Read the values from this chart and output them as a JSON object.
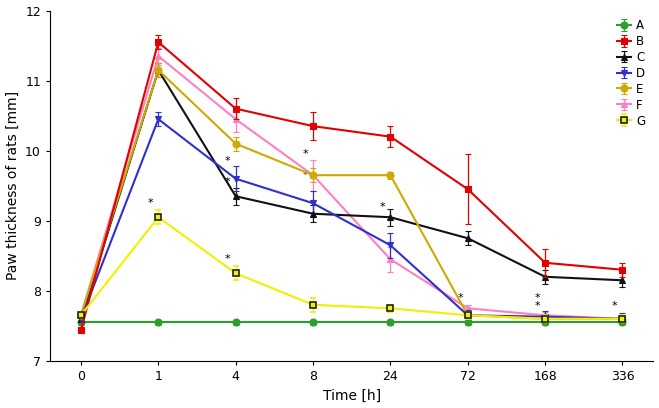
{
  "x_positions": [
    0,
    1,
    2,
    3,
    4,
    5,
    6,
    7
  ],
  "x_labels": [
    "0",
    "1",
    "4",
    "8",
    "24",
    "72",
    "168",
    "336"
  ],
  "series": {
    "A": {
      "color": "#2ca02c",
      "marker": "o",
      "markersize": 5,
      "linewidth": 1.5,
      "values": [
        7.55,
        7.55,
        7.55,
        7.55,
        7.55,
        7.55,
        7.55,
        7.55
      ],
      "errors": [
        0.04,
        0.04,
        0.04,
        0.04,
        0.04,
        0.04,
        0.04,
        0.04
      ],
      "markerfacecolor": "#2ca02c",
      "markeredgecolor": "#2ca02c",
      "zorder": 4
    },
    "B": {
      "color": "#e00000",
      "marker": "s",
      "markersize": 5,
      "linewidth": 1.5,
      "values": [
        7.44,
        11.55,
        10.6,
        10.35,
        10.2,
        9.45,
        8.4,
        8.3
      ],
      "errors": [
        0.04,
        0.1,
        0.15,
        0.2,
        0.15,
        0.5,
        0.2,
        0.1
      ],
      "markerfacecolor": "#e00000",
      "markeredgecolor": "#e00000",
      "zorder": 5
    },
    "C": {
      "color": "#111111",
      "marker": "^",
      "markersize": 5,
      "linewidth": 1.5,
      "values": [
        7.6,
        11.15,
        9.35,
        9.1,
        9.05,
        8.75,
        8.2,
        8.15
      ],
      "errors": [
        0.04,
        0.1,
        0.12,
        0.12,
        0.12,
        0.1,
        0.1,
        0.1
      ],
      "markerfacecolor": "#111111",
      "markeredgecolor": "#111111",
      "zorder": 4
    },
    "D": {
      "color": "#3030cc",
      "marker": "v",
      "markersize": 5,
      "linewidth": 1.5,
      "values": [
        7.6,
        10.45,
        9.6,
        9.25,
        8.65,
        7.65,
        7.63,
        7.6
      ],
      "errors": [
        0.04,
        0.1,
        0.18,
        0.18,
        0.18,
        0.08,
        0.08,
        0.08
      ],
      "markerfacecolor": "#3030cc",
      "markeredgecolor": "#3030cc",
      "zorder": 4
    },
    "E": {
      "color": "#ccaa00",
      "marker": "o",
      "markersize": 5,
      "linewidth": 1.5,
      "values": [
        7.65,
        11.15,
        10.1,
        9.65,
        9.65,
        7.65,
        7.6,
        7.6
      ],
      "errors": [
        0.04,
        0.1,
        0.1,
        0.1,
        0.05,
        0.05,
        0.05,
        0.05
      ],
      "markerfacecolor": "#ccaa00",
      "markeredgecolor": "#ccaa00",
      "zorder": 4
    },
    "F": {
      "color": "#ff80c0",
      "marker": "^",
      "markersize": 5,
      "linewidth": 1.5,
      "values": [
        7.65,
        11.35,
        10.45,
        9.65,
        8.45,
        7.75,
        7.65,
        7.6
      ],
      "errors": [
        0.04,
        0.12,
        0.18,
        0.22,
        0.18,
        0.05,
        0.05,
        0.05
      ],
      "markerfacecolor": "#ff80c0",
      "markeredgecolor": "#ff80c0",
      "zorder": 3
    },
    "G": {
      "color": "#f0f000",
      "marker": "s",
      "markersize": 5,
      "linewidth": 1.5,
      "values": [
        7.65,
        9.05,
        8.25,
        7.8,
        7.75,
        7.65,
        7.6,
        7.6
      ],
      "errors": [
        0.04,
        0.1,
        0.1,
        0.1,
        0.05,
        0.05,
        0.05,
        0.05
      ],
      "markerfacecolor": "#f0f000",
      "markeredgecolor": "#222222",
      "zorder": 5
    }
  },
  "asterisks": [
    {
      "xi": 1,
      "y": 9.25,
      "color": "black"
    },
    {
      "xi": 2,
      "y": 9.85,
      "color": "black"
    },
    {
      "xi": 2,
      "y": 9.55,
      "color": "black"
    },
    {
      "xi": 2,
      "y": 8.45,
      "color": "black"
    },
    {
      "xi": 3,
      "y": 9.95,
      "color": "black"
    },
    {
      "xi": 3,
      "y": 9.65,
      "color": "black"
    },
    {
      "xi": 4,
      "y": 9.2,
      "color": "black"
    },
    {
      "xi": 5,
      "y": 7.9,
      "color": "black"
    },
    {
      "xi": 6,
      "y": 7.9,
      "color": "black"
    },
    {
      "xi": 6,
      "y": 7.78,
      "color": "black"
    },
    {
      "xi": 7,
      "y": 7.78,
      "color": "black"
    }
  ],
  "ylim": [
    7.0,
    12.0
  ],
  "yticks": [
    7,
    8,
    9,
    10,
    11,
    12
  ],
  "ylabel": "Paw thickness of rats [mm]",
  "xlabel": "Time [h]",
  "legend_order": [
    "A",
    "B",
    "C",
    "D",
    "E",
    "F",
    "G"
  ]
}
